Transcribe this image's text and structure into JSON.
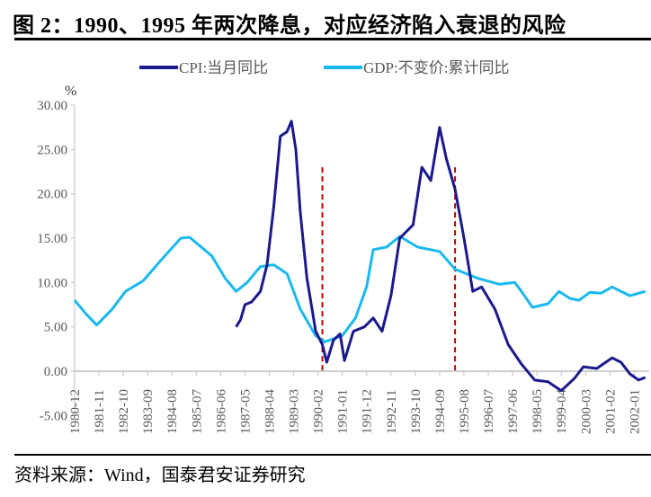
{
  "title": "图 2：1990、1995 年两次降息，对应经济陷入衰退的风险",
  "source": "资料来源：Wind，国泰君安证券研究",
  "chart_data": {
    "type": "line",
    "title": "",
    "ylabel": "%",
    "ylim": [
      -5,
      30
    ],
    "yticks": [
      "30.00",
      "25.00",
      "20.00",
      "15.00",
      "10.00",
      "5.00",
      "0.00",
      "-5.00"
    ],
    "ytick_values": [
      30,
      25,
      20,
      15,
      10,
      5,
      0,
      -5
    ],
    "xlim": [
      "1980-12",
      "2002-07"
    ],
    "xticks": [
      "1980-12",
      "1981-11",
      "1982-10",
      "1983-09",
      "1984-08",
      "1985-07",
      "1986-06",
      "1987-05",
      "1988-04",
      "1989-03",
      "1990-02",
      "1991-01",
      "1991-12",
      "1992-11",
      "1993-10",
      "1994-09",
      "1995-08",
      "1996-07",
      "1997-06",
      "1998-05",
      "1999-04",
      "2000-03",
      "2001-02",
      "2002-01"
    ],
    "legend_position": "top",
    "grid": false,
    "series": [
      {
        "name": "CPI:当月同比",
        "color": "#1a1a8c",
        "points": [
          [
            "1987-01",
            5.0
          ],
          [
            "1987-03",
            5.8
          ],
          [
            "1987-05",
            7.5
          ],
          [
            "1987-08",
            7.8
          ],
          [
            "1987-12",
            9.0
          ],
          [
            "1988-03",
            12.0
          ],
          [
            "1988-06",
            18.5
          ],
          [
            "1988-09",
            26.5
          ],
          [
            "1988-12",
            27.0
          ],
          [
            "1989-02",
            28.2
          ],
          [
            "1989-04",
            25.0
          ],
          [
            "1989-06",
            18.0
          ],
          [
            "1989-09",
            10.5
          ],
          [
            "1990-01",
            4.5
          ],
          [
            "1990-04",
            3.0
          ],
          [
            "1990-06",
            1.0
          ],
          [
            "1990-09",
            3.5
          ],
          [
            "1990-12",
            4.2
          ],
          [
            "1991-02",
            1.2
          ],
          [
            "1991-06",
            4.5
          ],
          [
            "1991-11",
            5.0
          ],
          [
            "1992-03",
            6.0
          ],
          [
            "1992-07",
            4.5
          ],
          [
            "1992-11",
            8.5
          ],
          [
            "1993-03",
            15.0
          ],
          [
            "1993-09",
            16.5
          ],
          [
            "1994-01",
            23.0
          ],
          [
            "1994-05",
            21.5
          ],
          [
            "1994-09",
            27.5
          ],
          [
            "1994-12",
            24.0
          ],
          [
            "1995-04",
            20.5
          ],
          [
            "1995-08",
            15.0
          ],
          [
            "1995-12",
            9.0
          ],
          [
            "1996-04",
            9.5
          ],
          [
            "1996-10",
            7.0
          ],
          [
            "1997-04",
            3.0
          ],
          [
            "1997-10",
            0.8
          ],
          [
            "1998-04",
            -1.0
          ],
          [
            "1998-10",
            -1.2
          ],
          [
            "1999-04",
            -2.2
          ],
          [
            "1999-10",
            -0.8
          ],
          [
            "2000-02",
            0.5
          ],
          [
            "2000-08",
            0.3
          ],
          [
            "2001-03",
            1.5
          ],
          [
            "2001-07",
            1.0
          ],
          [
            "2001-11",
            -0.3
          ],
          [
            "2002-03",
            -1.0
          ],
          [
            "2002-06",
            -0.7
          ]
        ]
      },
      {
        "name": "GDP:不变价:累计同比",
        "color": "#1ab8f0",
        "points": [
          [
            "1980-12",
            8.0
          ],
          [
            "1981-05",
            6.5
          ],
          [
            "1981-10",
            5.2
          ],
          [
            "1982-05",
            7.0
          ],
          [
            "1982-11",
            9.0
          ],
          [
            "1983-07",
            10.2
          ],
          [
            "1984-03",
            12.5
          ],
          [
            "1984-12",
            15.0
          ],
          [
            "1985-04",
            15.1
          ],
          [
            "1986-02",
            13.0
          ],
          [
            "1986-08",
            10.5
          ],
          [
            "1987-01",
            9.0
          ],
          [
            "1987-06",
            10.0
          ],
          [
            "1987-12",
            11.8
          ],
          [
            "1988-06",
            12.0
          ],
          [
            "1988-12",
            11.0
          ],
          [
            "1989-06",
            7.0
          ],
          [
            "1990-01",
            4.0
          ],
          [
            "1990-05",
            3.3
          ],
          [
            "1991-01",
            4.0
          ],
          [
            "1991-07",
            6.0
          ],
          [
            "1991-12",
            9.5
          ],
          [
            "1992-03",
            13.7
          ],
          [
            "1992-09",
            14.0
          ],
          [
            "1993-03",
            15.2
          ],
          [
            "1993-11",
            14.0
          ],
          [
            "1994-09",
            13.5
          ],
          [
            "1995-04",
            11.5
          ],
          [
            "1996-02",
            10.5
          ],
          [
            "1996-12",
            9.8
          ],
          [
            "1997-07",
            10.0
          ],
          [
            "1997-10",
            9.0
          ],
          [
            "1998-03",
            7.2
          ],
          [
            "1998-10",
            7.6
          ],
          [
            "1999-03",
            9.0
          ],
          [
            "1999-08",
            8.2
          ],
          [
            "1999-12",
            8.0
          ],
          [
            "2000-05",
            8.9
          ],
          [
            "2000-10",
            8.8
          ],
          [
            "2001-03",
            9.5
          ],
          [
            "2001-11",
            8.5
          ],
          [
            "2002-06",
            9.0
          ]
        ]
      }
    ],
    "annotations": [
      {
        "type": "vline",
        "x": "1990-04",
        "color": "#c00000",
        "style": "dashed",
        "from": 0,
        "to": 23
      },
      {
        "type": "vline",
        "x": "1995-04",
        "color": "#c00000",
        "style": "dashed",
        "from": 0,
        "to": 23
      }
    ]
  }
}
